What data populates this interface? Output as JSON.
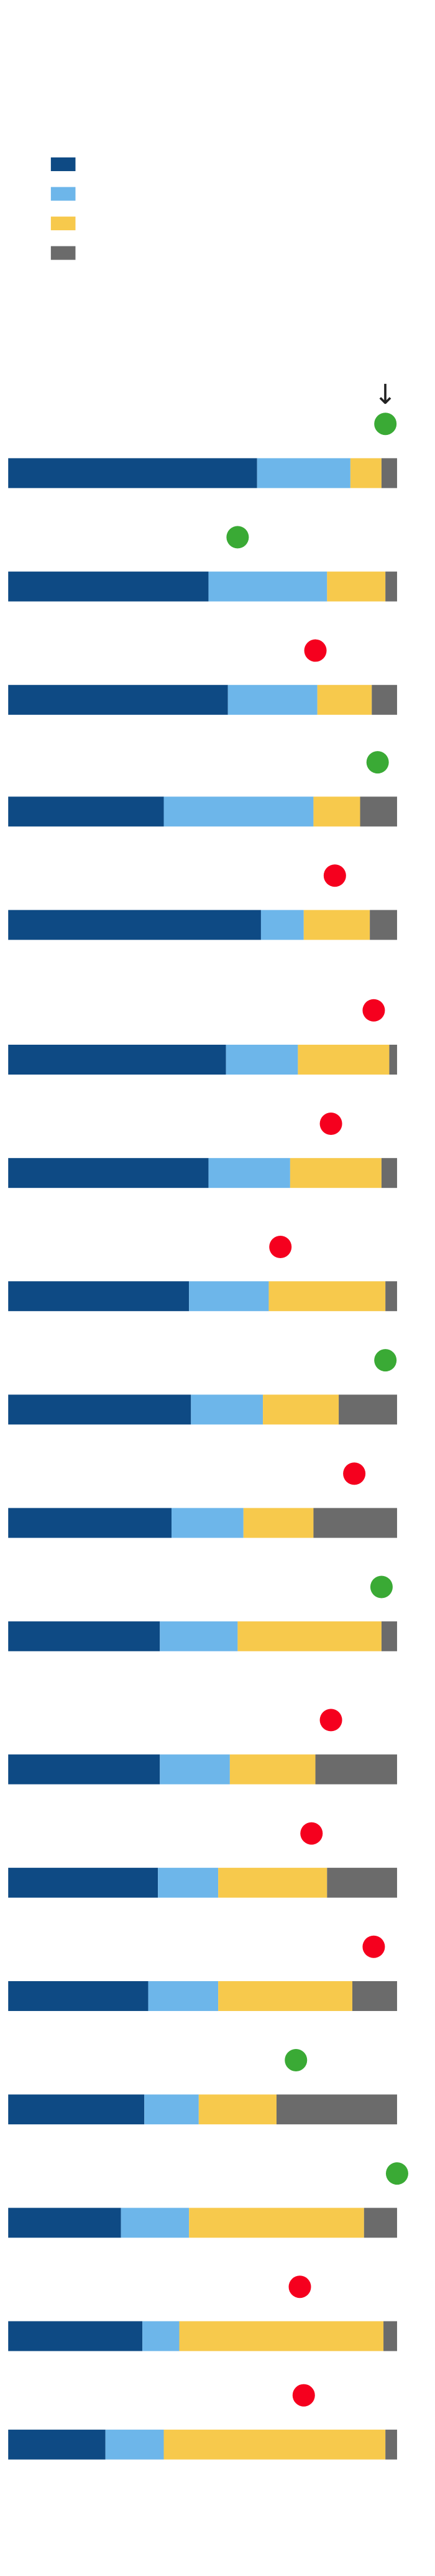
{
  "chart_data": {
    "type": "stacked-bar",
    "annotation": "↓",
    "xlim": [
      0,
      100
    ],
    "series": [
      {
        "color": "#0e4a84",
        "values": [
          64,
          51.5,
          56.5,
          40,
          65,
          56,
          51.5,
          46.5,
          47,
          42,
          39,
          39,
          38.5,
          36,
          35,
          29,
          34.5,
          25
        ]
      },
      {
        "color": "#6db6ea",
        "values": [
          24,
          30.5,
          23,
          38.5,
          11,
          18.5,
          21,
          20.5,
          18.5,
          18.5,
          20,
          18,
          15.5,
          18,
          14,
          17.5,
          9.5,
          15
        ]
      },
      {
        "color": "#f7c94c",
        "values": [
          8,
          15,
          14,
          12,
          17,
          23.5,
          23.5,
          30,
          19.5,
          18,
          37,
          22,
          28,
          34.5,
          20,
          45,
          52.5,
          57
        ]
      },
      {
        "color": "#6b6b6b",
        "values": [
          4,
          3,
          6.5,
          9.5,
          7,
          2,
          4,
          3,
          15,
          21.5,
          4,
          21,
          18,
          11.5,
          31,
          8.5,
          3.5,
          3
        ]
      }
    ],
    "markers": {
      "values": [
        97,
        59,
        79,
        95,
        84,
        94,
        83,
        70,
        97,
        89,
        96,
        83,
        78,
        94,
        74,
        100,
        75,
        76
      ],
      "colors": [
        "#3aaa35",
        "#3aaa35",
        "#f5001e",
        "#3aaa35",
        "#f5001e",
        "#f5001e",
        "#f5001e",
        "#f5001e",
        "#3aaa35",
        "#f5001e",
        "#3aaa35",
        "#f5001e",
        "#f5001e",
        "#f5001e",
        "#3aaa35",
        "#3aaa35",
        "#f5001e",
        "#f5001e"
      ]
    }
  }
}
